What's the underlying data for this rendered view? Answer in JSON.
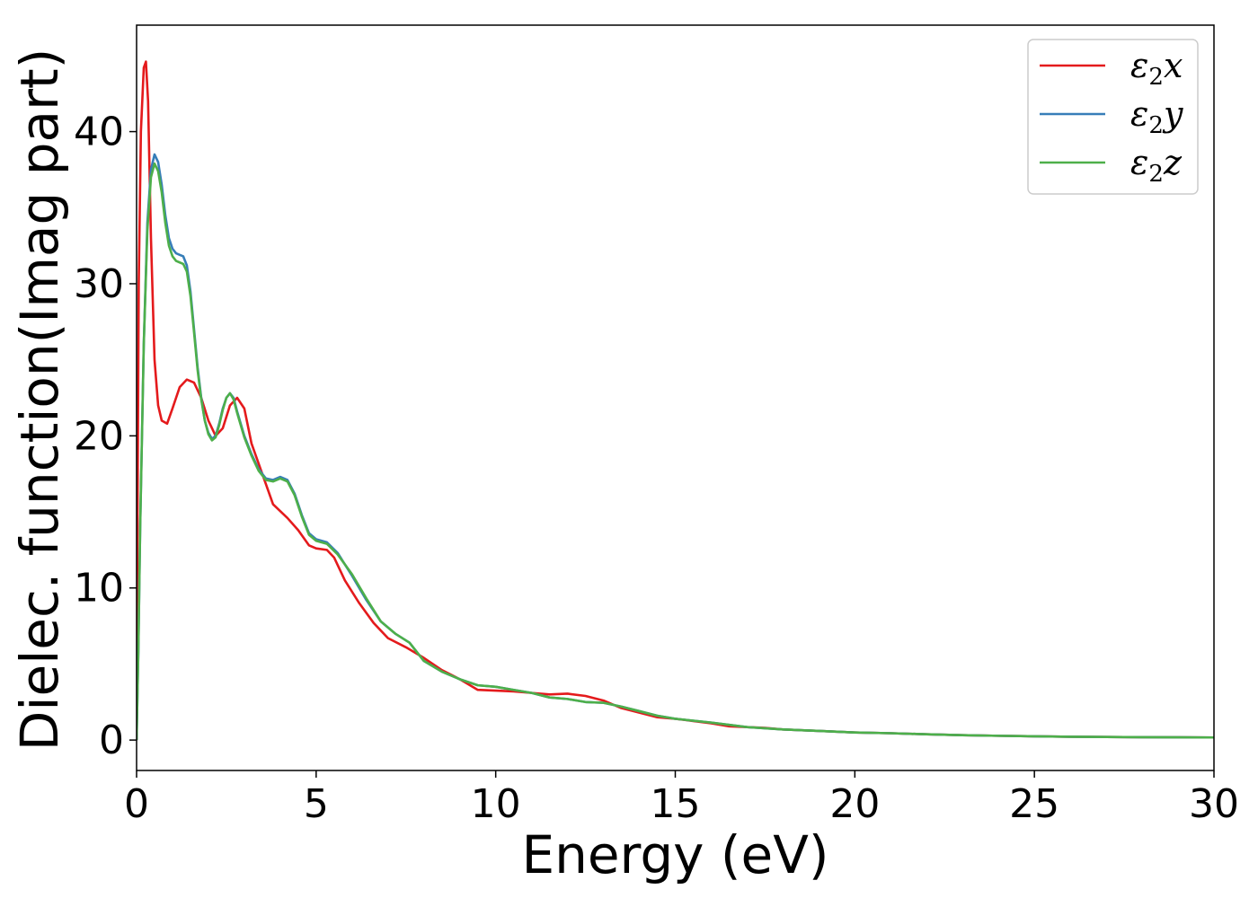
{
  "chart_data": {
    "type": "line",
    "title": "",
    "xlabel": "Energy (eV)",
    "ylabel": "Dielec. function(Imag part)",
    "xlim": [
      0,
      30
    ],
    "ylim": [
      -2,
      47
    ],
    "xticks": [
      0,
      5,
      10,
      15,
      20,
      25,
      30
    ],
    "yticks": [
      0,
      10,
      20,
      30,
      40
    ],
    "grid": false,
    "legend_position": "top-right",
    "series": [
      {
        "name": "ε2x",
        "label_base": "ε",
        "label_sub": "2",
        "label_var": "x",
        "color": "#e41a1c",
        "points": [
          [
            0,
            0
          ],
          [
            0.02,
            12
          ],
          [
            0.06,
            30
          ],
          [
            0.12,
            40
          ],
          [
            0.2,
            44.2
          ],
          [
            0.26,
            44.6
          ],
          [
            0.32,
            42
          ],
          [
            0.4,
            33
          ],
          [
            0.5,
            25
          ],
          [
            0.6,
            22
          ],
          [
            0.7,
            21
          ],
          [
            0.85,
            20.8
          ],
          [
            1.0,
            21.8
          ],
          [
            1.2,
            23.2
          ],
          [
            1.4,
            23.7
          ],
          [
            1.6,
            23.5
          ],
          [
            1.8,
            22.5
          ],
          [
            2.0,
            21
          ],
          [
            2.2,
            20
          ],
          [
            2.4,
            20.5
          ],
          [
            2.6,
            22
          ],
          [
            2.8,
            22.5
          ],
          [
            3.0,
            21.8
          ],
          [
            3.2,
            19.5
          ],
          [
            3.5,
            17.5
          ],
          [
            3.8,
            15.5
          ],
          [
            4.2,
            14.6
          ],
          [
            4.5,
            13.8
          ],
          [
            4.8,
            12.8
          ],
          [
            5.0,
            12.6
          ],
          [
            5.3,
            12.5
          ],
          [
            5.5,
            12
          ],
          [
            5.8,
            10.5
          ],
          [
            6.2,
            9
          ],
          [
            6.6,
            7.7
          ],
          [
            7.0,
            6.7
          ],
          [
            7.5,
            6.1
          ],
          [
            8.0,
            5.4
          ],
          [
            8.5,
            4.6
          ],
          [
            9.0,
            4.0
          ],
          [
            9.5,
            3.3
          ],
          [
            10.0,
            3.25
          ],
          [
            10.5,
            3.2
          ],
          [
            11,
            3.1
          ],
          [
            11.5,
            3.0
          ],
          [
            12,
            3.05
          ],
          [
            12.5,
            2.9
          ],
          [
            13,
            2.6
          ],
          [
            13.5,
            2.1
          ],
          [
            14,
            1.8
          ],
          [
            14.5,
            1.5
          ],
          [
            15,
            1.4
          ],
          [
            15.5,
            1.25
          ],
          [
            16,
            1.1
          ],
          [
            16.5,
            0.9
          ],
          [
            17,
            0.85
          ],
          [
            17.5,
            0.8
          ],
          [
            18,
            0.7
          ],
          [
            19,
            0.6
          ],
          [
            20,
            0.5
          ],
          [
            21,
            0.45
          ],
          [
            22,
            0.38
          ],
          [
            23,
            0.32
          ],
          [
            24,
            0.28
          ],
          [
            25,
            0.25
          ],
          [
            26,
            0.22
          ],
          [
            27,
            0.2
          ],
          [
            28,
            0.19
          ],
          [
            29,
            0.18
          ],
          [
            30,
            0.17
          ]
        ]
      },
      {
        "name": "ε2y",
        "label_base": "ε",
        "label_sub": "2",
        "label_var": "y",
        "color": "#377eb8",
        "points": [
          [
            0,
            0
          ],
          [
            0.05,
            6
          ],
          [
            0.1,
            14
          ],
          [
            0.2,
            26
          ],
          [
            0.3,
            34
          ],
          [
            0.4,
            37.5
          ],
          [
            0.5,
            38.5
          ],
          [
            0.6,
            38
          ],
          [
            0.7,
            36.5
          ],
          [
            0.8,
            34.5
          ],
          [
            0.9,
            33
          ],
          [
            1.0,
            32.3
          ],
          [
            1.1,
            32
          ],
          [
            1.2,
            31.9
          ],
          [
            1.3,
            31.8
          ],
          [
            1.4,
            31.2
          ],
          [
            1.5,
            29.5
          ],
          [
            1.6,
            27
          ],
          [
            1.7,
            24.5
          ],
          [
            1.8,
            22.5
          ],
          [
            1.9,
            21
          ],
          [
            2.0,
            20.2
          ],
          [
            2.1,
            19.8
          ],
          [
            2.2,
            20
          ],
          [
            2.3,
            20.8
          ],
          [
            2.4,
            21.8
          ],
          [
            2.5,
            22.5
          ],
          [
            2.6,
            22.8
          ],
          [
            2.7,
            22.5
          ],
          [
            2.8,
            21.6
          ],
          [
            3.0,
            20
          ],
          [
            3.2,
            18.8
          ],
          [
            3.4,
            17.8
          ],
          [
            3.6,
            17.2
          ],
          [
            3.8,
            17.1
          ],
          [
            4.0,
            17.3
          ],
          [
            4.2,
            17.1
          ],
          [
            4.4,
            16.2
          ],
          [
            4.6,
            14.8
          ],
          [
            4.8,
            13.6
          ],
          [
            5.0,
            13.2
          ],
          [
            5.3,
            13.0
          ],
          [
            5.6,
            12.3
          ],
          [
            6.0,
            10.8
          ],
          [
            6.4,
            9.2
          ],
          [
            6.8,
            7.8
          ],
          [
            7.2,
            7.0
          ],
          [
            7.6,
            6.4
          ],
          [
            8.0,
            5.2
          ],
          [
            8.5,
            4.5
          ],
          [
            9.0,
            4.0
          ],
          [
            9.5,
            3.6
          ],
          [
            10,
            3.5
          ],
          [
            10.5,
            3.3
          ],
          [
            11,
            3.1
          ],
          [
            11.5,
            2.8
          ],
          [
            12,
            2.7
          ],
          [
            12.5,
            2.5
          ],
          [
            13,
            2.45
          ],
          [
            13.5,
            2.2
          ],
          [
            14,
            1.9
          ],
          [
            14.5,
            1.6
          ],
          [
            15,
            1.4
          ],
          [
            16,
            1.15
          ],
          [
            17,
            0.85
          ],
          [
            18,
            0.7
          ],
          [
            19,
            0.6
          ],
          [
            20,
            0.5
          ],
          [
            21,
            0.45
          ],
          [
            22,
            0.38
          ],
          [
            23,
            0.32
          ],
          [
            24,
            0.28
          ],
          [
            25,
            0.25
          ],
          [
            26,
            0.22
          ],
          [
            27,
            0.2
          ],
          [
            28,
            0.19
          ],
          [
            29,
            0.18
          ],
          [
            30,
            0.17
          ]
        ]
      },
      {
        "name": "ε2z",
        "label_base": "ε",
        "label_sub": "2",
        "label_var": "z",
        "color": "#4daf4a",
        "points": [
          [
            0,
            0
          ],
          [
            0.05,
            6
          ],
          [
            0.1,
            14
          ],
          [
            0.2,
            26
          ],
          [
            0.3,
            33.5
          ],
          [
            0.4,
            37
          ],
          [
            0.5,
            37.9
          ],
          [
            0.6,
            37.4
          ],
          [
            0.7,
            36
          ],
          [
            0.8,
            34
          ],
          [
            0.9,
            32.5
          ],
          [
            1.0,
            31.8
          ],
          [
            1.1,
            31.5
          ],
          [
            1.2,
            31.4
          ],
          [
            1.3,
            31.3
          ],
          [
            1.4,
            30.8
          ],
          [
            1.5,
            29.2
          ],
          [
            1.6,
            26.8
          ],
          [
            1.7,
            24.3
          ],
          [
            1.8,
            22.4
          ],
          [
            1.9,
            21
          ],
          [
            2.0,
            20.1
          ],
          [
            2.1,
            19.7
          ],
          [
            2.2,
            19.9
          ],
          [
            2.3,
            20.7
          ],
          [
            2.4,
            21.7
          ],
          [
            2.5,
            22.5
          ],
          [
            2.6,
            22.8
          ],
          [
            2.7,
            22.4
          ],
          [
            2.8,
            21.5
          ],
          [
            3.0,
            19.9
          ],
          [
            3.2,
            18.7
          ],
          [
            3.4,
            17.7
          ],
          [
            3.6,
            17.1
          ],
          [
            3.8,
            17.0
          ],
          [
            4.0,
            17.2
          ],
          [
            4.2,
            17.0
          ],
          [
            4.4,
            16.1
          ],
          [
            4.6,
            14.7
          ],
          [
            4.8,
            13.5
          ],
          [
            5.0,
            13.1
          ],
          [
            5.3,
            12.9
          ],
          [
            5.6,
            12.2
          ],
          [
            6.0,
            10.9
          ],
          [
            6.4,
            9.3
          ],
          [
            6.8,
            7.8
          ],
          [
            7.2,
            7.0
          ],
          [
            7.6,
            6.4
          ],
          [
            8.0,
            5.2
          ],
          [
            8.5,
            4.5
          ],
          [
            9.0,
            4.0
          ],
          [
            9.5,
            3.6
          ],
          [
            10,
            3.5
          ],
          [
            10.5,
            3.3
          ],
          [
            11,
            3.1
          ],
          [
            11.5,
            2.8
          ],
          [
            12,
            2.7
          ],
          [
            12.5,
            2.5
          ],
          [
            13,
            2.45
          ],
          [
            13.5,
            2.2
          ],
          [
            14,
            1.9
          ],
          [
            14.5,
            1.6
          ],
          [
            15,
            1.4
          ],
          [
            16,
            1.15
          ],
          [
            17,
            0.85
          ],
          [
            18,
            0.7
          ],
          [
            19,
            0.6
          ],
          [
            20,
            0.5
          ],
          [
            21,
            0.45
          ],
          [
            22,
            0.38
          ],
          [
            23,
            0.32
          ],
          [
            24,
            0.28
          ],
          [
            25,
            0.25
          ],
          [
            26,
            0.22
          ],
          [
            27,
            0.2
          ],
          [
            28,
            0.19
          ],
          [
            29,
            0.18
          ],
          [
            30,
            0.17
          ]
        ]
      }
    ]
  }
}
